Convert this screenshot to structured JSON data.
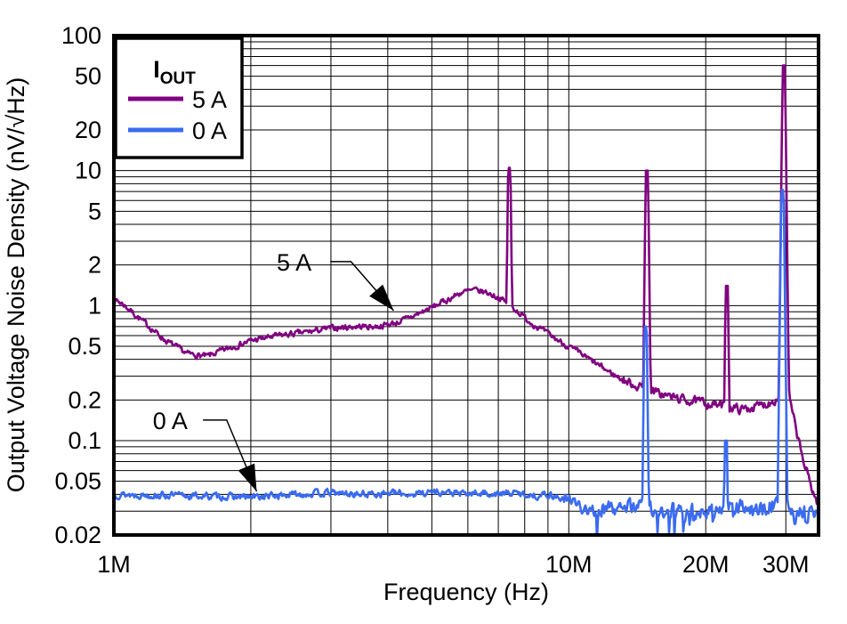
{
  "chart_data": {
    "type": "line",
    "title": "",
    "xlabel": "Frequency (Hz)",
    "ylabel": "Output Voltage Noise Density (nV/√Hz)",
    "x_scale": "log",
    "y_scale": "log",
    "x_range_hz": [
      1000000,
      35400000
    ],
    "y_range": [
      0.02,
      100
    ],
    "grid": "on, log minor gridlines, black",
    "x_ticks": [
      {
        "label": "1M",
        "hz": 1000000
      },
      {
        "label": "10M",
        "hz": 10000000
      },
      {
        "label": "20M",
        "hz": 20000000
      },
      {
        "label": "30M",
        "hz": 30000000
      }
    ],
    "y_ticks": [
      {
        "label": "100",
        "v": 100
      },
      {
        "label": "50",
        "v": 50
      },
      {
        "label": "20",
        "v": 20
      },
      {
        "label": "10",
        "v": 10
      },
      {
        "label": "5",
        "v": 5
      },
      {
        "label": "2",
        "v": 2
      },
      {
        "label": "1",
        "v": 1
      },
      {
        "label": "0.5",
        "v": 0.5
      },
      {
        "label": "0.2",
        "v": 0.2
      },
      {
        "label": "0.1",
        "v": 0.1
      },
      {
        "label": "0.05",
        "v": 0.05
      },
      {
        "label": "0.02",
        "v": 0.02
      }
    ],
    "legend": {
      "position": "top-left",
      "title_main": "I",
      "title_sub": "OUT"
    },
    "series": [
      {
        "name": "5 A",
        "color": "#800080",
        "control_points_mhz_nv": [
          [
            1.0,
            1.12
          ],
          [
            1.05,
            1.02
          ],
          [
            1.15,
            0.78
          ],
          [
            1.3,
            0.55
          ],
          [
            1.45,
            0.44
          ],
          [
            1.6,
            0.42
          ],
          [
            1.75,
            0.47
          ],
          [
            2.0,
            0.55
          ],
          [
            2.3,
            0.6
          ],
          [
            2.6,
            0.63
          ],
          [
            3.0,
            0.68
          ],
          [
            3.4,
            0.7
          ],
          [
            3.8,
            0.7
          ],
          [
            4.2,
            0.75
          ],
          [
            4.6,
            0.85
          ],
          [
            5.0,
            0.97
          ],
          [
            5.4,
            1.1
          ],
          [
            5.8,
            1.25
          ],
          [
            6.2,
            1.3
          ],
          [
            6.6,
            1.25
          ],
          [
            7.0,
            1.15
          ],
          [
            7.4,
            1.02
          ],
          [
            7.8,
            0.88
          ],
          [
            8.2,
            0.76
          ],
          [
            8.8,
            0.65
          ],
          [
            9.5,
            0.55
          ],
          [
            10.5,
            0.45
          ],
          [
            11.5,
            0.37
          ],
          [
            12.5,
            0.31
          ],
          [
            13.5,
            0.27
          ],
          [
            14.8,
            0.24
          ],
          [
            16.0,
            0.22
          ],
          [
            18.0,
            0.2
          ],
          [
            20.0,
            0.19
          ],
          [
            22.0,
            0.18
          ],
          [
            24.0,
            0.17
          ],
          [
            26.0,
            0.18
          ],
          [
            27.5,
            0.19
          ],
          [
            29.0,
            0.21
          ],
          [
            29.8,
            0.3
          ],
          [
            30.3,
            0.25
          ],
          [
            31.0,
            0.16
          ],
          [
            32.0,
            0.1
          ],
          [
            33.0,
            0.065
          ],
          [
            34.0,
            0.048
          ],
          [
            35.4,
            0.032
          ]
        ],
        "spikes_mhz_nv": [
          [
            7.4,
            10.5
          ],
          [
            14.85,
            10.0
          ],
          [
            22.25,
            1.4
          ],
          [
            29.7,
            60.0
          ]
        ],
        "noise_log10": [
          {
            "max_mhz": 13,
            "amp": 0.034
          },
          {
            "max_mhz": 100,
            "amp": 0.052
          }
        ],
        "deep_dips": false
      },
      {
        "name": "0 A",
        "color": "#3A6BF0",
        "control_points_mhz_nv": [
          [
            1.0,
            0.04
          ],
          [
            1.5,
            0.039
          ],
          [
            2.0,
            0.038
          ],
          [
            2.5,
            0.04
          ],
          [
            3.0,
            0.041
          ],
          [
            3.5,
            0.04
          ],
          [
            4.0,
            0.041
          ],
          [
            4.5,
            0.04
          ],
          [
            5.0,
            0.042
          ],
          [
            5.5,
            0.041
          ],
          [
            6.0,
            0.04
          ],
          [
            6.5,
            0.041
          ],
          [
            7.0,
            0.04
          ],
          [
            7.5,
            0.041
          ],
          [
            8.0,
            0.04
          ],
          [
            8.5,
            0.039
          ],
          [
            9.0,
            0.04
          ],
          [
            9.5,
            0.038
          ],
          [
            10.0,
            0.035
          ],
          [
            10.5,
            0.032
          ],
          [
            11.0,
            0.031
          ],
          [
            12.0,
            0.031
          ],
          [
            13.0,
            0.032
          ],
          [
            14.0,
            0.033
          ],
          [
            15.0,
            0.031
          ],
          [
            16.0,
            0.03
          ],
          [
            17.0,
            0.031
          ],
          [
            18.0,
            0.031
          ],
          [
            19.0,
            0.03
          ],
          [
            20.0,
            0.031
          ],
          [
            21.0,
            0.03
          ],
          [
            22.0,
            0.032
          ],
          [
            23.0,
            0.033
          ],
          [
            24.0,
            0.032
          ],
          [
            25.0,
            0.03
          ],
          [
            26.0,
            0.03
          ],
          [
            27.0,
            0.032
          ],
          [
            28.0,
            0.034
          ],
          [
            29.0,
            0.035
          ],
          [
            29.6,
            0.04
          ],
          [
            30.0,
            0.034
          ],
          [
            31.0,
            0.03
          ],
          [
            32.0,
            0.029
          ],
          [
            33.0,
            0.03
          ],
          [
            34.0,
            0.028
          ],
          [
            35.4,
            0.028
          ]
        ],
        "spikes_mhz_nv": [
          [
            14.75,
            0.7
          ],
          [
            22.15,
            0.1
          ],
          [
            29.5,
            7.2
          ]
        ],
        "noise_log10": [
          {
            "max_mhz": 9.8,
            "amp": 0.04
          },
          {
            "max_mhz": 100,
            "amp": 0.085
          }
        ],
        "deep_dips": true
      }
    ],
    "annotations": [
      {
        "label": "5 A",
        "text_at_mhz_nv": [
          2.49,
          2.12
        ],
        "leader_mhz_nv": [
          [
            2.99,
            2.12
          ],
          [
            3.32,
            2.12
          ],
          [
            4.12,
            0.92
          ]
        ]
      },
      {
        "label": "0 A",
        "text_at_mhz_nv": [
          1.33,
          0.142
        ],
        "leader_mhz_nv": [
          [
            1.57,
            0.142
          ],
          [
            1.77,
            0.142
          ],
          [
            2.06,
            0.042
          ]
        ]
      }
    ]
  }
}
